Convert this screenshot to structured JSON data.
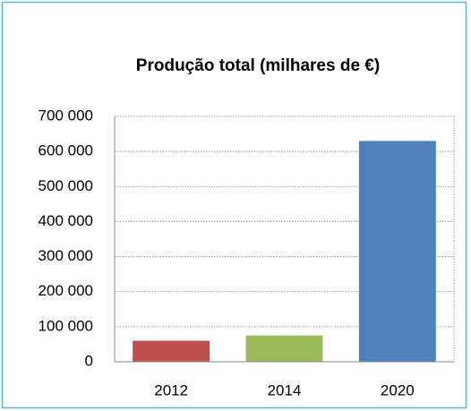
{
  "chart_data": {
    "type": "bar",
    "title": "Produção total (milhares de €)",
    "categories": [
      "2012",
      "2014",
      "2020"
    ],
    "values": [
      60000,
      75000,
      630000
    ],
    "colors": [
      "#c0504d",
      "#9bbb59",
      "#4f81bd"
    ],
    "ylim": [
      0,
      700000
    ],
    "yticks": [
      0,
      {
        "value": 100000,
        "label": "100 000"
      },
      {
        "value": 200000,
        "label": "200 000"
      },
      {
        "value": 300000,
        "label": "300 000"
      },
      {
        "value": 400000,
        "label": "400 000"
      },
      {
        "value": 500000,
        "label": "500 000"
      },
      {
        "value": 600000,
        "label": "600 000"
      },
      {
        "value": 700000,
        "label": "700 000"
      }
    ],
    "grid": true
  }
}
